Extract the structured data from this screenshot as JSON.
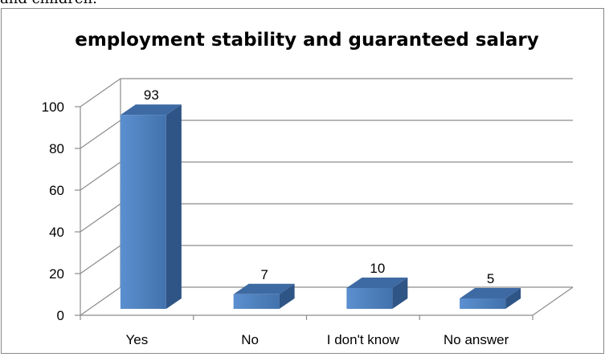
{
  "header_fragment": "and children.",
  "chart_data": {
    "type": "bar",
    "title": "employment stability and guaranteed salary",
    "categories": [
      "Yes",
      "No",
      "I don't know",
      "No answer"
    ],
    "values": [
      93,
      7,
      10,
      5
    ],
    "data_labels": [
      "93",
      "7",
      "10",
      "5"
    ],
    "yticks": [
      "0",
      "20",
      "40",
      "60",
      "80",
      "100"
    ],
    "ylim": [
      0,
      100
    ],
    "xlabel": "",
    "ylabel": "",
    "grid": true,
    "three_d": true,
    "bar_color": "#4f81bd"
  }
}
